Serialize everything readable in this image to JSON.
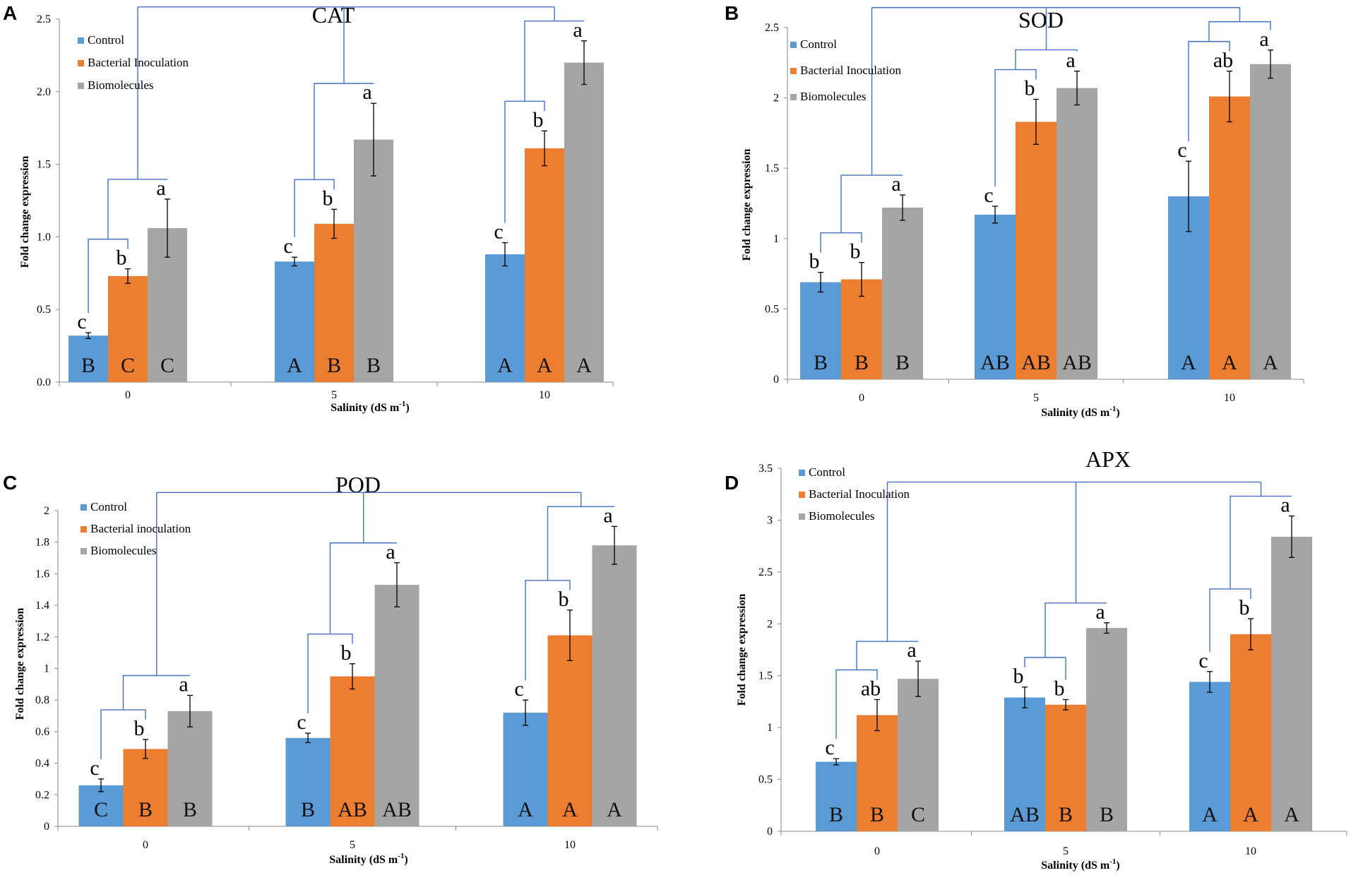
{
  "colors": {
    "control": "#5b9bd5",
    "bacterial": "#ed7d31",
    "biomolecules": "#a5a5a5",
    "bracket": "#4472c4"
  },
  "chart_data": [
    {
      "panel": "A",
      "type": "bar",
      "title": "CAT",
      "xlabel": "Salinity (dS m-1)",
      "ylabel": "Fold change expression",
      "categories": [
        "0",
        "5",
        "10"
      ],
      "ylim": [
        0,
        2.5
      ],
      "yticks": [
        "0.0",
        "0.5",
        "1.0",
        "1.5",
        "2.0",
        "2.5"
      ],
      "series": [
        {
          "name": "Control",
          "values": [
            0.32,
            0.83,
            0.88
          ],
          "errors": [
            0.02,
            0.03,
            0.08
          ],
          "letters": [
            "c",
            "c",
            "c"
          ],
          "groups": [
            "B",
            "A",
            "A"
          ]
        },
        {
          "name": "Bacterial Inoculation",
          "values": [
            0.73,
            1.09,
            1.61
          ],
          "errors": [
            0.05,
            0.1,
            0.12
          ],
          "letters": [
            "b",
            "b",
            "b"
          ],
          "groups": [
            "C",
            "B",
            "A"
          ]
        },
        {
          "name": "Biomolecules",
          "values": [
            1.06,
            1.67,
            2.2
          ],
          "errors": [
            0.2,
            0.25,
            0.15
          ],
          "letters": [
            "a",
            "a",
            "a"
          ],
          "groups": [
            "C",
            "B",
            "A"
          ]
        }
      ]
    },
    {
      "panel": "B",
      "type": "bar",
      "title": "SOD",
      "xlabel": "Salinity (dS m-1)",
      "ylabel": "Fold change expression",
      "categories": [
        "0",
        "5",
        "10"
      ],
      "ylim": [
        0,
        2.5
      ],
      "yticks": [
        "0",
        "0.5",
        "1",
        "1.5",
        "2",
        "2.5"
      ],
      "series": [
        {
          "name": "Control",
          "values": [
            0.69,
            1.17,
            1.3
          ],
          "errors": [
            0.07,
            0.06,
            0.25
          ],
          "letters": [
            "b",
            "c",
            "c"
          ],
          "groups": [
            "B",
            "AB",
            "A"
          ]
        },
        {
          "name": "Bacterial Inoculation",
          "values": [
            0.71,
            1.83,
            2.01
          ],
          "errors": [
            0.12,
            0.16,
            0.18
          ],
          "letters": [
            "b",
            "b",
            "ab"
          ],
          "groups": [
            "B",
            "AB",
            "A"
          ]
        },
        {
          "name": "Biomolecules",
          "values": [
            1.22,
            2.07,
            2.24
          ],
          "errors": [
            0.09,
            0.12,
            0.1
          ],
          "letters": [
            "a",
            "a",
            "a"
          ],
          "groups": [
            "B",
            "AB",
            "A"
          ]
        }
      ]
    },
    {
      "panel": "C",
      "type": "bar",
      "title": "POD",
      "xlabel": "Salinity (dS m-1)",
      "ylabel": "Fold change expression",
      "categories": [
        "0",
        "5",
        "10"
      ],
      "ylim": [
        0,
        2
      ],
      "yticks": [
        "0",
        "0.2",
        "0.4",
        "0.6",
        "0.8",
        "1",
        "1.2",
        "1.4",
        "1.6",
        "1.8",
        "2"
      ],
      "series": [
        {
          "name": "Control",
          "values": [
            0.26,
            0.56,
            0.72
          ],
          "errors": [
            0.04,
            0.03,
            0.08
          ],
          "letters": [
            "c",
            "c",
            "c"
          ],
          "groups": [
            "C",
            "B",
            "A"
          ]
        },
        {
          "name": "Bacterial inoculation",
          "values": [
            0.49,
            0.95,
            1.21
          ],
          "errors": [
            0.06,
            0.08,
            0.16
          ],
          "letters": [
            "b",
            "b",
            "b"
          ],
          "groups": [
            "B",
            "AB",
            "A"
          ]
        },
        {
          "name": "Biomolecules",
          "values": [
            0.73,
            1.53,
            1.78
          ],
          "errors": [
            0.1,
            0.14,
            0.12
          ],
          "letters": [
            "a",
            "a",
            "a"
          ],
          "groups": [
            "B",
            "AB",
            "A"
          ]
        }
      ]
    },
    {
      "panel": "D",
      "type": "bar",
      "title": "APX",
      "xlabel": "Salinity (dS m-1)",
      "ylabel": "Fold change expression",
      "categories": [
        "0",
        "5",
        "10"
      ],
      "ylim": [
        0,
        3.5
      ],
      "yticks": [
        "0",
        "0.5",
        "1",
        "1.5",
        "2",
        "2.5",
        "3",
        "3.5"
      ],
      "series": [
        {
          "name": "Control",
          "values": [
            0.67,
            1.29,
            1.44
          ],
          "errors": [
            0.03,
            0.1,
            0.1
          ],
          "letters": [
            "c",
            "b",
            "c"
          ],
          "groups": [
            "B",
            "AB",
            "A"
          ]
        },
        {
          "name": "Bacterial Inoculation",
          "values": [
            1.12,
            1.22,
            1.9
          ],
          "errors": [
            0.15,
            0.05,
            0.15
          ],
          "letters": [
            "ab",
            "b",
            "b"
          ],
          "groups": [
            "B",
            "B",
            "A"
          ]
        },
        {
          "name": "Biomolecules",
          "values": [
            1.47,
            1.96,
            2.84
          ],
          "errors": [
            0.17,
            0.05,
            0.2
          ],
          "letters": [
            "a",
            "a",
            "a"
          ],
          "groups": [
            "C",
            "B",
            "A"
          ]
        }
      ]
    }
  ]
}
